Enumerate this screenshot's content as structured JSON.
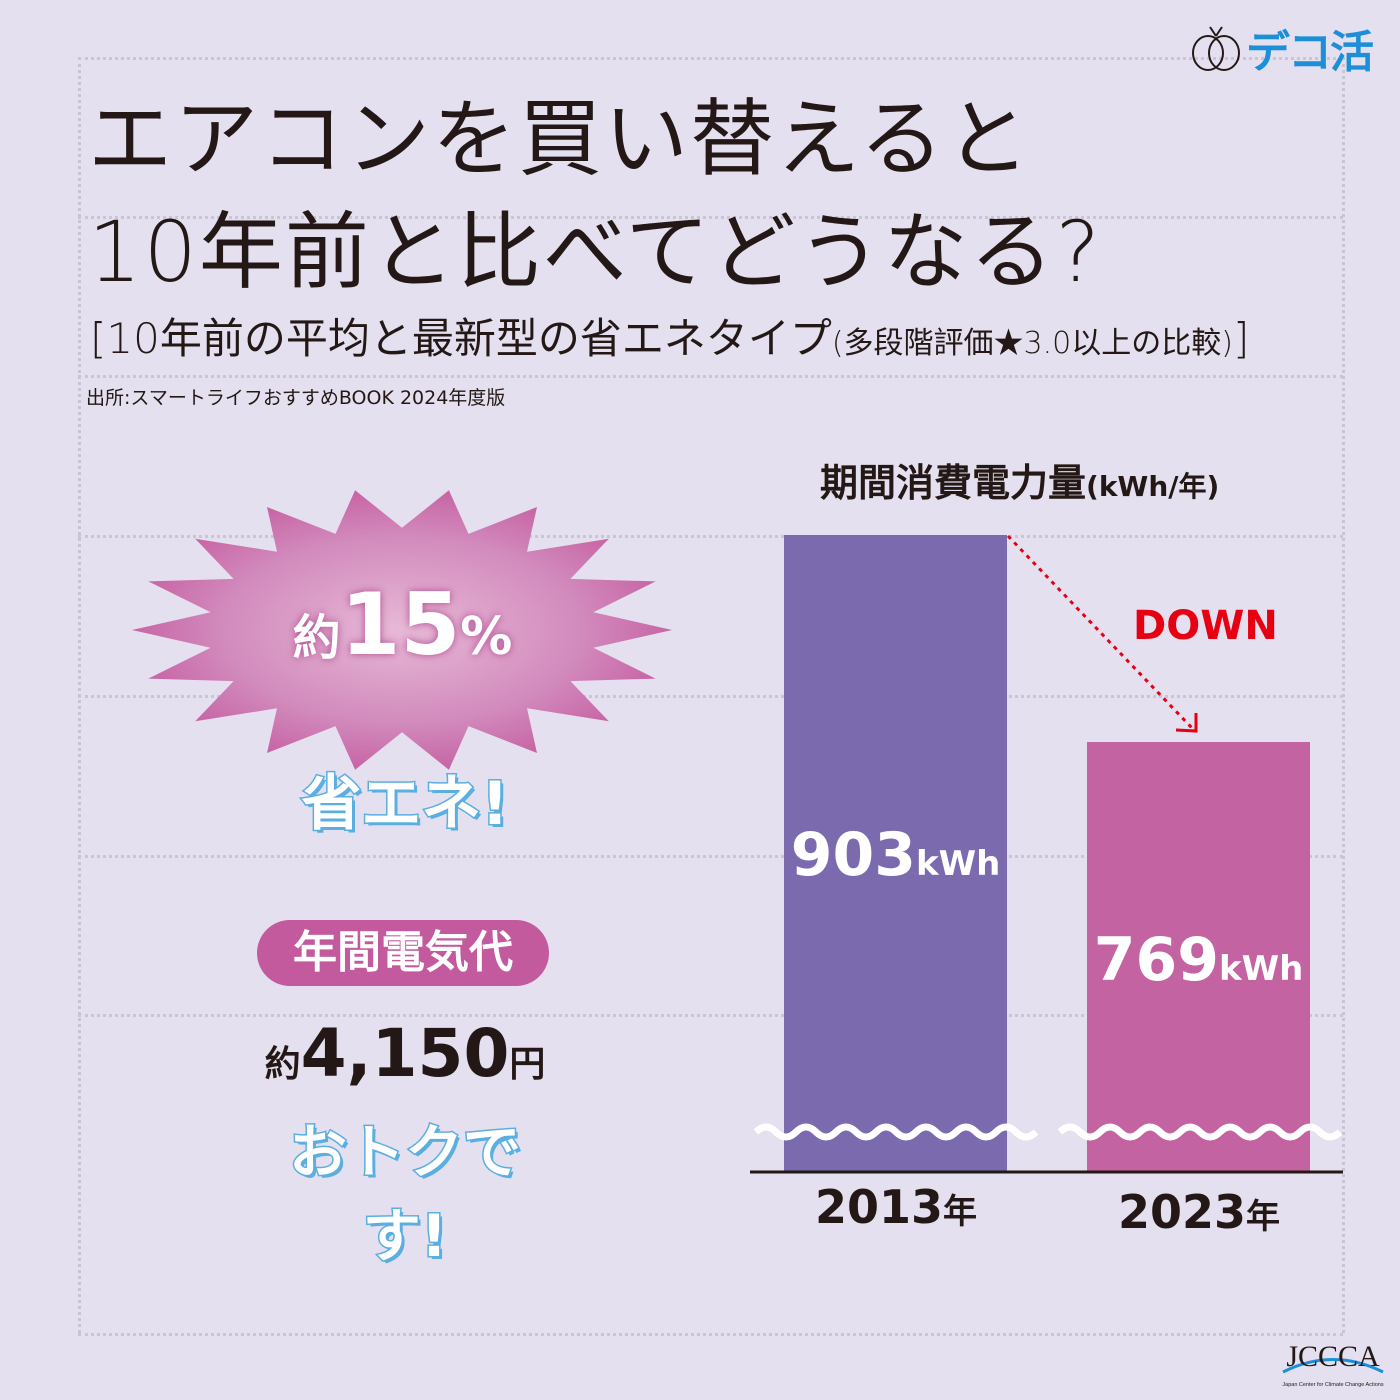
{
  "logo": {
    "text": "デコ活",
    "color": "#1c8fd8"
  },
  "title": {
    "line1": "エアコンを買い替えると",
    "line2": "10年前と比べてどうなる?"
  },
  "subtitle": {
    "main": "[10年前の平均と最新型の省エネタイプ",
    "note": "(多段階評価★3.0以上の比較)",
    "close": "]"
  },
  "source": "出所:スマートライフおすすめBOOK 2024年度版",
  "burst": {
    "prefix": "約",
    "value": "15",
    "unit": "%",
    "color": "#c45a9e"
  },
  "saving_label": "省エネ!",
  "cost": {
    "pill": "年間電気代",
    "prefix": "約",
    "value": "4,150",
    "unit": "円",
    "tagline": "おトクです!"
  },
  "chart_data": {
    "type": "bar",
    "title": "期間消費電力量",
    "unit_label": "(kWh/年)",
    "categories": [
      "2013",
      "2023"
    ],
    "category_suffix": "年",
    "values": [
      903,
      769
    ],
    "value_labels": [
      "903",
      "769"
    ],
    "value_unit": "kWh",
    "colors": [
      "#7b6aae",
      "#c463a2"
    ],
    "axis_break": true,
    "annotation": "DOWN",
    "annotation_color": "#e60012"
  },
  "footer_logo": {
    "text": "JCCCA",
    "caption": "Japan Center for Climate Change Actions"
  }
}
